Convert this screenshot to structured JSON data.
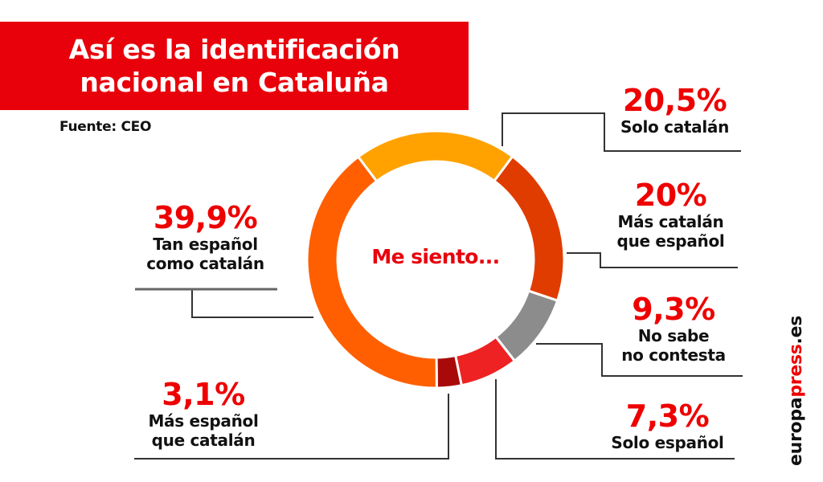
{
  "header": {
    "title_line1": "Así es la identificación",
    "title_line2": "nacional en Cataluña",
    "source": "Fuente: CEO",
    "banner_color": "#e8000b"
  },
  "center_label": "Me siento...",
  "watermark": {
    "prefix": "europa",
    "accent": "press",
    "suffix": ".es"
  },
  "labels": [
    {
      "pct": "20,5%",
      "line1": "Solo catalán",
      "line2": ""
    },
    {
      "pct": "20%",
      "line1": "Más catalán",
      "line2": "que español"
    },
    {
      "pct": "9,3%",
      "line1": "No sabe",
      "line2": "no contesta"
    },
    {
      "pct": "7,3%",
      "line1": "Solo español",
      "line2": ""
    },
    {
      "pct": "3,1%",
      "line1": "Más español",
      "line2": "que catalán"
    },
    {
      "pct": "39,9%",
      "line1": "Tan español",
      "line2": "como catalán"
    }
  ],
  "chart_data": {
    "type": "pie",
    "subtype": "donut",
    "title": "Así es la identificación nacional en Cataluña",
    "subtitle": "Fuente: CEO",
    "center_text": "Me siento...",
    "categories": [
      "Solo catalán",
      "Más catalán que español",
      "No sabe no contesta",
      "Solo español",
      "Más español que catalán",
      "Tan español como catalán"
    ],
    "values": [
      20.5,
      20,
      9.3,
      7.3,
      3.1,
      39.9
    ],
    "colors": [
      "#ffa200",
      "#e03c00",
      "#8c8c8c",
      "#ee2222",
      "#a80a0a",
      "#ff5f00"
    ],
    "start_angle_deg": -37,
    "direction": "clockwise",
    "legend": "callout labels"
  }
}
